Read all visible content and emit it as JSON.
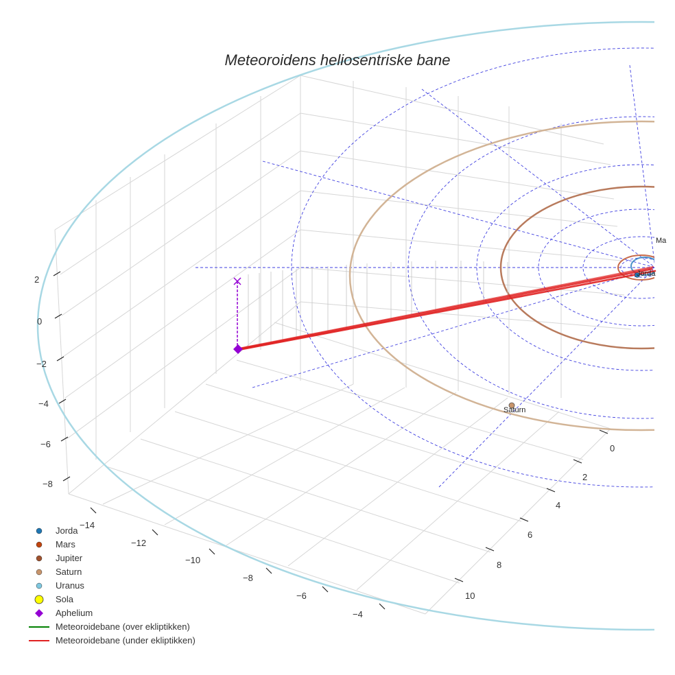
{
  "chart_data": {
    "type": "scatter3d",
    "title": "Meteoroidens heliosentriske bane",
    "axes": {
      "x": {
        "ticks": [
          "−14",
          "−12",
          "−10",
          "−8",
          "−6",
          "−4"
        ]
      },
      "y": {
        "ticks": [
          "0",
          "2",
          "4",
          "6",
          "8",
          "10"
        ]
      },
      "z": {
        "ticks": [
          "2",
          "0",
          "−2",
          "−4",
          "−6",
          "−8"
        ]
      }
    },
    "planet_labels": {
      "mars": "Ma",
      "earth": "Jorda",
      "saturn": "Saturn"
    },
    "legend": [
      {
        "label": "Jorda",
        "color": "#1f77b4",
        "marker": "circle"
      },
      {
        "label": "Mars",
        "color": "#c1440e",
        "marker": "circle"
      },
      {
        "label": "Jupiter",
        "color": "#a0522d",
        "marker": "circle"
      },
      {
        "label": "Saturn",
        "color": "#c8956c",
        "marker": "circle"
      },
      {
        "label": "Uranus",
        "color": "#7fc8e0",
        "marker": "circle"
      },
      {
        "label": "Sola",
        "color": "#ffff00",
        "marker": "circle-large"
      },
      {
        "label": "Aphelium",
        "color": "#9400d3",
        "marker": "diamond"
      },
      {
        "label": "Meteoroidebane (over ekliptikken)",
        "color": "#008000",
        "marker": "line"
      },
      {
        "label": "Meteoroidebane (under ekliptikken)",
        "color": "#e02020",
        "marker": "line"
      }
    ],
    "colors": {
      "uranus_orbit": "#a8d8e4",
      "saturn_orbit": "#d2b496",
      "jupiter_orbit": "#b87a5c",
      "mars_orbit": "#c76a4a",
      "earth_orbit": "#4a90c8",
      "meteoroid_under": "#e02020",
      "grid": "#d6d6d6",
      "dashed": "#3f3fe0"
    }
  }
}
